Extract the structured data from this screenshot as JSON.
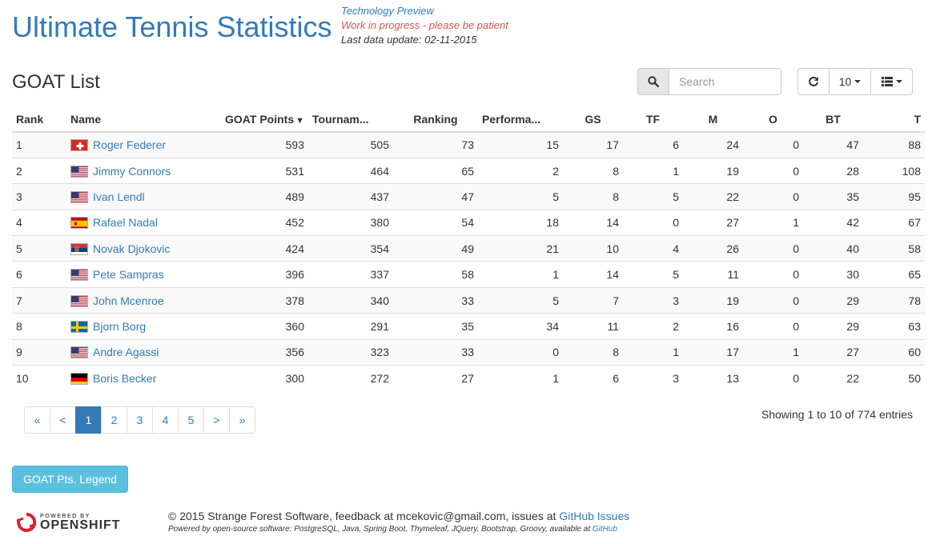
{
  "header": {
    "title": "Ultimate Tennis Statistics",
    "note_preview": "Technology Preview",
    "note_progress": "Work in progress - please be patient",
    "note_update": "Last data update: 02-11-2015"
  },
  "page": {
    "title": "GOAT List"
  },
  "toolbar": {
    "search_placeholder": "Search",
    "page_size": "10",
    "icons": {
      "search": "search-icon",
      "refresh": "refresh-icon",
      "columns": "list-columns-icon"
    }
  },
  "table": {
    "columns": [
      "Rank",
      "Name",
      "GOAT Points",
      "Tournam...",
      "Ranking",
      "Performa...",
      "GS",
      "TF",
      "M",
      "O",
      "BT",
      "T"
    ],
    "rows": [
      {
        "rank": "1",
        "country": "SUI",
        "name": "Roger Federer",
        "points": "593",
        "tournament": "505",
        "ranking": "73",
        "performance": "15",
        "gs": "17",
        "tf": "6",
        "m": "24",
        "o": "0",
        "bt": "47",
        "t": "88"
      },
      {
        "rank": "2",
        "country": "USA",
        "name": "Jimmy Connors",
        "points": "531",
        "tournament": "464",
        "ranking": "65",
        "performance": "2",
        "gs": "8",
        "tf": "1",
        "m": "19",
        "o": "0",
        "bt": "28",
        "t": "108"
      },
      {
        "rank": "3",
        "country": "USA",
        "name": "Ivan Lendl",
        "points": "489",
        "tournament": "437",
        "ranking": "47",
        "performance": "5",
        "gs": "8",
        "tf": "5",
        "m": "22",
        "o": "0",
        "bt": "35",
        "t": "95"
      },
      {
        "rank": "4",
        "country": "ESP",
        "name": "Rafael Nadal",
        "points": "452",
        "tournament": "380",
        "ranking": "54",
        "performance": "18",
        "gs": "14",
        "tf": "0",
        "m": "27",
        "o": "1",
        "bt": "42",
        "t": "67"
      },
      {
        "rank": "5",
        "country": "SRB",
        "name": "Novak Djokovic",
        "points": "424",
        "tournament": "354",
        "ranking": "49",
        "performance": "21",
        "gs": "10",
        "tf": "4",
        "m": "26",
        "o": "0",
        "bt": "40",
        "t": "58"
      },
      {
        "rank": "6",
        "country": "USA",
        "name": "Pete Sampras",
        "points": "396",
        "tournament": "337",
        "ranking": "58",
        "performance": "1",
        "gs": "14",
        "tf": "5",
        "m": "11",
        "o": "0",
        "bt": "30",
        "t": "65"
      },
      {
        "rank": "7",
        "country": "USA",
        "name": "John Mcenroe",
        "points": "378",
        "tournament": "340",
        "ranking": "33",
        "performance": "5",
        "gs": "7",
        "tf": "3",
        "m": "19",
        "o": "0",
        "bt": "29",
        "t": "78"
      },
      {
        "rank": "8",
        "country": "SWE",
        "name": "Bjorn Borg",
        "points": "360",
        "tournament": "291",
        "ranking": "35",
        "performance": "34",
        "gs": "11",
        "tf": "2",
        "m": "16",
        "o": "0",
        "bt": "29",
        "t": "63"
      },
      {
        "rank": "9",
        "country": "USA",
        "name": "Andre Agassi",
        "points": "356",
        "tournament": "323",
        "ranking": "33",
        "performance": "0",
        "gs": "8",
        "tf": "1",
        "m": "17",
        "o": "1",
        "bt": "27",
        "t": "60"
      },
      {
        "rank": "10",
        "country": "GER",
        "name": "Boris Becker",
        "points": "300",
        "tournament": "272",
        "ranking": "27",
        "performance": "1",
        "gs": "6",
        "tf": "3",
        "m": "13",
        "o": "0",
        "bt": "22",
        "t": "50"
      }
    ]
  },
  "pagination": {
    "first": "«",
    "prev": "<",
    "pages": [
      "1",
      "2",
      "3",
      "4",
      "5"
    ],
    "active": "1",
    "next": ">",
    "last": "»",
    "summary": "Showing 1 to 10 of 774 entries"
  },
  "legend_button": "GOAT Pts. Legend",
  "footer": {
    "powered_by": "POWERED BY",
    "openshift": "OPENSHIFT",
    "copyright": "© 2015 Strange Forest Software, feedback at mcekovic@gmail.com, issues at",
    "issues_link": "GitHub Issues",
    "software": "Powered by open-source software: PostgreSQL, Java, Spring Boot, Thymeleaf, JQuery, Bootstrap, Groovy, available at",
    "github_link": "GitHub"
  },
  "colors": {
    "brand": "#337ab7",
    "warning": "#d9534f",
    "info_button": "#5bc0de"
  }
}
